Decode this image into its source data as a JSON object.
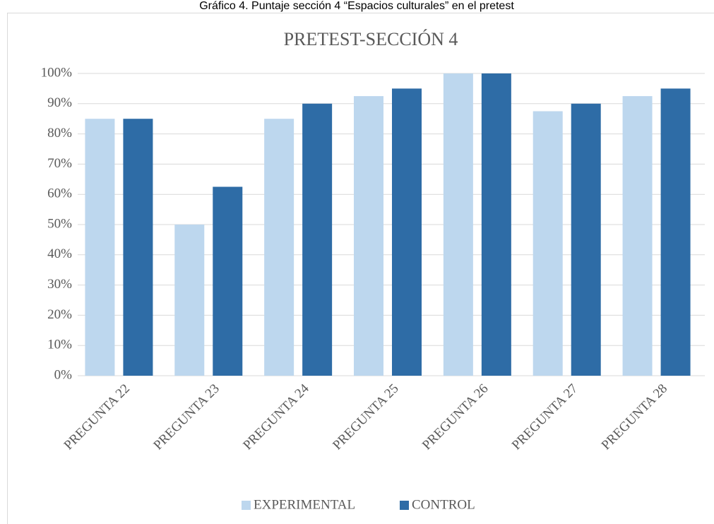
{
  "chart_data": {
    "type": "bar",
    "caption": "Gráfico 4. Puntaje sección 4 “Espacios culturales” en el pretest",
    "title": "PRETEST-SECCIÓN 4",
    "categories": [
      "PREGUNTA 22",
      "PREGUNTA 23",
      "PREGUNTA 24",
      "PREGUNTA 25",
      "PREGUNTA 26",
      "PREGUNTA 27",
      "PREGUNTA 28"
    ],
    "series": [
      {
        "name": "EXPERIMENTAL",
        "color": "#bdd7ee",
        "values": [
          85,
          50,
          85,
          92.5,
          100,
          87.5,
          92.5
        ]
      },
      {
        "name": "CONTROL",
        "color": "#2e6ca6",
        "values": [
          85,
          62.5,
          90,
          95,
          100,
          90,
          95
        ]
      }
    ],
    "ylim": [
      0,
      100
    ],
    "yticks": [
      {
        "value": 0,
        "label": "0%"
      },
      {
        "value": 10,
        "label": "10%"
      },
      {
        "value": 20,
        "label": "20%"
      },
      {
        "value": 30,
        "label": "30%"
      },
      {
        "value": 40,
        "label": "40%"
      },
      {
        "value": 50,
        "label": "50%"
      },
      {
        "value": 60,
        "label": "60%"
      },
      {
        "value": 70,
        "label": "70%"
      },
      {
        "value": 80,
        "label": "80%"
      },
      {
        "value": 90,
        "label": "90%"
      },
      {
        "value": 100,
        "label": "100%"
      }
    ],
    "grid": true,
    "legend": "bottom"
  }
}
